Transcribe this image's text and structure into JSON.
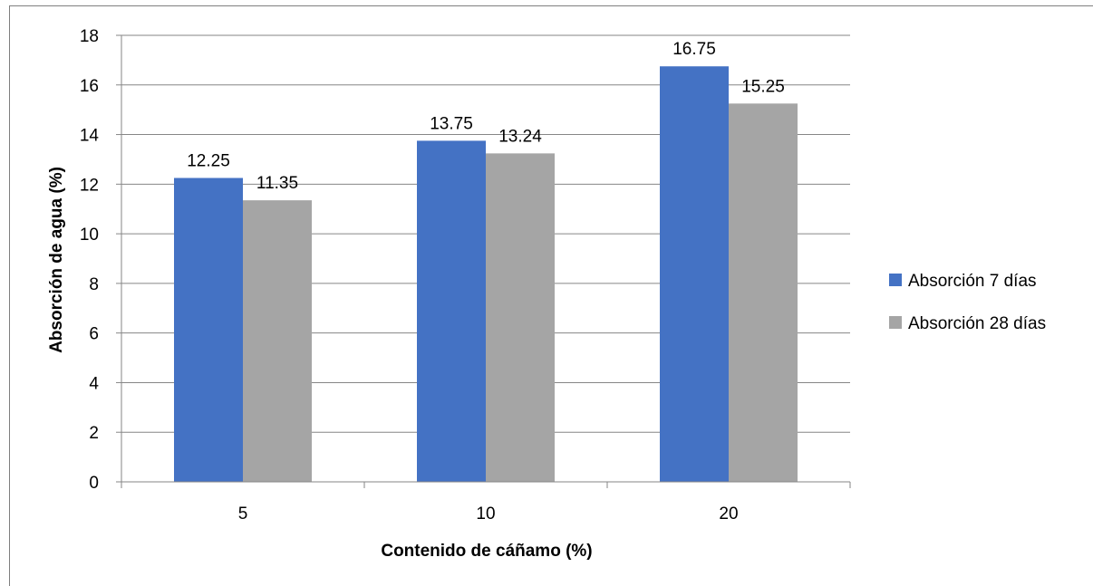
{
  "chart_data": {
    "type": "bar",
    "title": "",
    "xlabel": "Contenido de cáñamo (%)",
    "ylabel": "Absorción de agua (%)",
    "categories": [
      "5",
      "10",
      "20"
    ],
    "ylim": [
      0,
      18
    ],
    "yticks": [
      "0",
      "2",
      "4",
      "6",
      "8",
      "10",
      "12",
      "14",
      "16",
      "18"
    ],
    "grid": true,
    "legend_position": "right",
    "series": [
      {
        "name": "Absorción 7 días",
        "color": "#4472C4",
        "values": [
          12.25,
          13.75,
          16.75
        ],
        "labels": [
          "12.25",
          "13.75",
          "16.75"
        ]
      },
      {
        "name": "Absorción 28 días",
        "color": "#A5A5A5",
        "values": [
          11.35,
          13.24,
          15.25
        ],
        "labels": [
          "11.35",
          "13.24",
          "15.25"
        ]
      }
    ]
  }
}
